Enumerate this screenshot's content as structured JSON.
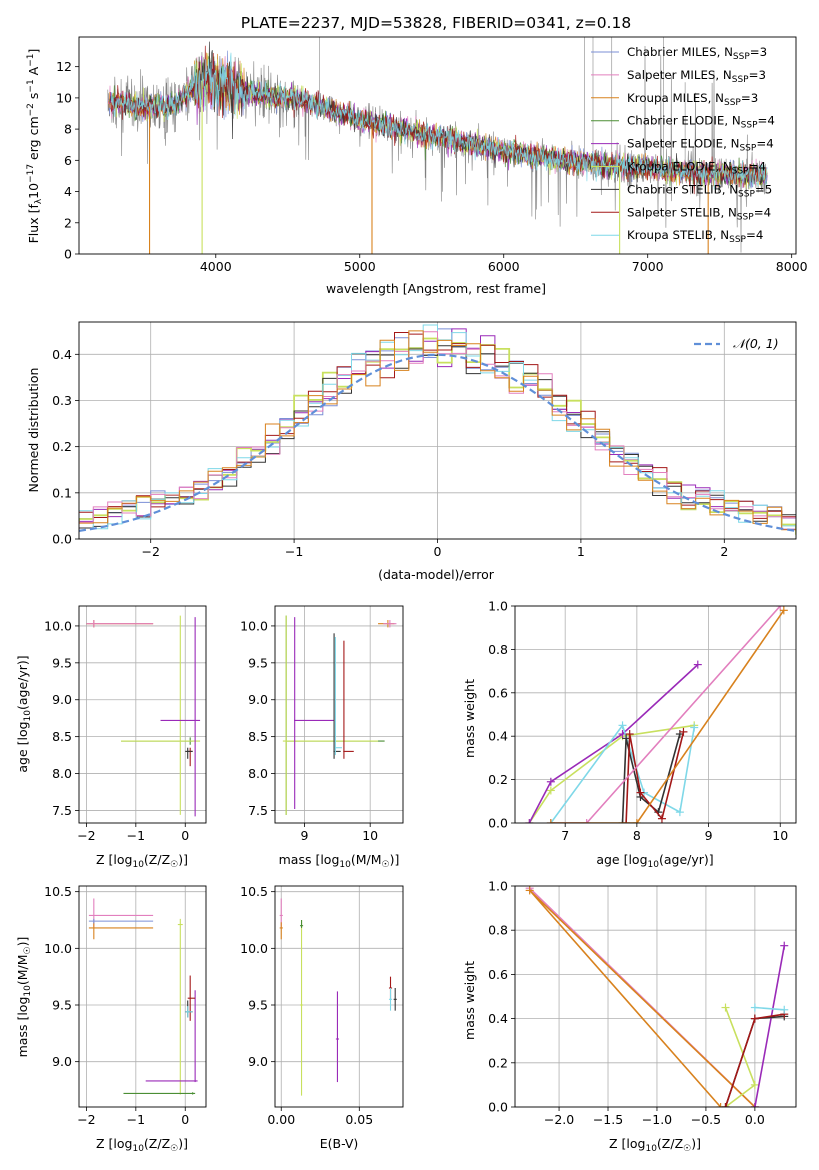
{
  "figure_title": "PLATE=2237, MJD=53828, FIBERID=0341, z=0.18",
  "colors": {
    "Chabrier MILES": "#7b8fd6",
    "Salpeter MILES": "#e27fbe",
    "Kroupa MILES": "#d8821e",
    "Chabrier ELODIE": "#4b8e34",
    "Salpeter ELODIE": "#9a2ab8",
    "Kroupa ELODIE": "#c8e05e",
    "Chabrier STELIB": "#333333",
    "Salpeter STELIB": "#a31818",
    "Kroupa STELIB": "#7fd8e8",
    "data": "#808080",
    "gauss": "#5f8fd8"
  },
  "chart_data": [
    {
      "id": "spectrum",
      "type": "line",
      "title": "PLATE=2237, MJD=53828, FIBERID=0341, z=0.18",
      "xlabel": "wavelength [Angstrom, rest frame]",
      "ylabel": "Flux [fλ10⁻¹⁷ erg cm⁻² s⁻¹ A⁻¹]",
      "xlim": [
        3050,
        8030
      ],
      "ylim": [
        0,
        13.9
      ],
      "xticks": [
        4000,
        5000,
        6000,
        7000,
        8000
      ],
      "yticks": [
        0,
        2,
        4,
        6,
        8,
        10,
        12
      ],
      "legend_position": "right",
      "series": [
        {
          "name": "Chabrier MILES",
          "label_main": "Chabrier MILES, N",
          "label_sub": "SSP",
          "label_tail": "=3"
        },
        {
          "name": "Salpeter MILES",
          "label_main": "Salpeter MILES, N",
          "label_sub": "SSP",
          "label_tail": "=3"
        },
        {
          "name": "Kroupa MILES",
          "label_main": "Kroupa MILES, N",
          "label_sub": "SSP",
          "label_tail": "=3"
        },
        {
          "name": "Chabrier ELODIE",
          "label_main": "Chabrier ELODIE, N",
          "label_sub": "SSP",
          "label_tail": "=4"
        },
        {
          "name": "Salpeter ELODIE",
          "label_main": "Salpeter ELODIE, N",
          "label_sub": "SSP",
          "label_tail": "=4"
        },
        {
          "name": "Kroupa ELODIE",
          "label_main": "Kroupa ELODIE, N",
          "label_sub": "SSP",
          "label_tail": "=4"
        },
        {
          "name": "Chabrier STELIB",
          "label_main": "Chabrier STELIB, N",
          "label_sub": "SSP",
          "label_tail": "=5"
        },
        {
          "name": "Salpeter STELIB",
          "label_main": "Salpeter STELIB, N",
          "label_sub": "SSP",
          "label_tail": "=4"
        },
        {
          "name": "Kroupa STELIB",
          "label_main": "Kroupa STELIB, N",
          "label_sub": "SSP",
          "label_tail": "=4"
        }
      ],
      "continuum": {
        "x": [
          3250,
          3500,
          3700,
          3900,
          4000,
          4300,
          4600,
          5000,
          5500,
          6000,
          6500,
          7000,
          7500,
          7830
        ],
        "y": [
          9.8,
          9.4,
          9.5,
          11.1,
          11.0,
          10.2,
          9.9,
          8.6,
          7.6,
          6.6,
          5.9,
          5.5,
          5.1,
          5.0
        ]
      },
      "drops_to_zero": [
        3540,
        3905,
        5085,
        6805,
        7420
      ]
    },
    {
      "id": "residuals",
      "type": "line",
      "xlabel": "(data-model)/error",
      "ylabel": "Normed distribution",
      "xlim": [
        -2.5,
        2.5
      ],
      "ylim": [
        0,
        0.47
      ],
      "xticks": [
        -2,
        -1,
        0,
        1,
        2
      ],
      "yticks": [
        0.0,
        0.1,
        0.2,
        0.3,
        0.4
      ],
      "legend_position": "top-right",
      "gauss_label": "N(0,1)",
      "hist_series": [
        "Chabrier MILES",
        "Salpeter ELODIE",
        "Kroupa ELODIE",
        "Chabrier STELIB",
        "Salpeter STELIB",
        "Kroupa STELIB",
        "Salpeter MILES",
        "Kroupa MILES"
      ]
    },
    {
      "id": "age_vs_Z",
      "type": "scatter",
      "xlabel": "Z [log₁₀(Z/Z☉)]",
      "ylabel": "age  [log₁₀(age/yr)]",
      "xlim": [
        -2.15,
        0.42
      ],
      "ylim": [
        7.33,
        10.27
      ],
      "xticks": [
        -2,
        -1,
        0
      ],
      "yticks": [
        7.5,
        8.0,
        8.5,
        9.0,
        9.5,
        10.0
      ]
    },
    {
      "id": "age_vs_mass",
      "type": "scatter",
      "xlabel": "mass [log₁₀(M/M☉)]",
      "ylabel": "",
      "xlim": [
        8.55,
        10.5
      ],
      "ylim": [
        7.33,
        10.27
      ],
      "xticks": [
        9,
        10
      ],
      "yticks": [
        7.5,
        8.0,
        8.5,
        9.0,
        9.5,
        10.0
      ]
    },
    {
      "id": "weight_vs_age",
      "type": "line",
      "xlabel": "age  [log₁₀(age/yr)]",
      "ylabel": "mass weight",
      "xlim": [
        6.3,
        10.22
      ],
      "ylim": [
        0,
        1.0
      ],
      "xticks": [
        7,
        8,
        9,
        10
      ],
      "yticks": [
        0.0,
        0.2,
        0.4,
        0.6,
        0.8,
        1.0
      ],
      "series": [
        {
          "name": "Kroupa ELODIE",
          "x": [
            6.5,
            6.8,
            7.8,
            8.8
          ],
          "y": [
            0.0,
            0.15,
            0.4,
            0.45
          ]
        },
        {
          "name": "Salpeter ELODIE",
          "x": [
            6.5,
            6.8,
            7.8,
            8.85
          ],
          "y": [
            0.0,
            0.19,
            0.41,
            0.73
          ]
        },
        {
          "name": "Kroupa STELIB",
          "x": [
            6.8,
            7.8,
            8.1,
            8.6,
            8.8
          ],
          "y": [
            0.0,
            0.45,
            0.14,
            0.05,
            0.44
          ]
        },
        {
          "name": "Chabrier STELIB",
          "x": [
            7.8,
            7.85,
            8.05,
            8.3,
            8.6
          ],
          "y": [
            0.0,
            0.39,
            0.12,
            0.05,
            0.41
          ]
        },
        {
          "name": "Salpeter STELIB",
          "x": [
            7.85,
            7.9,
            8.05,
            8.35,
            8.65
          ],
          "y": [
            0.0,
            0.41,
            0.14,
            0.02,
            0.42
          ]
        },
        {
          "name": "Salpeter MILES",
          "x": [
            6.8,
            7.3,
            10.0
          ],
          "y": [
            0.0,
            0.0,
            1.0
          ]
        },
        {
          "name": "Kroupa MILES",
          "x": [
            6.8,
            8.0,
            10.05
          ],
          "y": [
            0.0,
            0.0,
            0.98
          ]
        }
      ]
    },
    {
      "id": "mass_vs_Z",
      "type": "scatter",
      "xlabel": "Z [log₁₀(Z/Z☉)]",
      "ylabel": "mass [log₁₀(M/M☉)]",
      "xlim": [
        -2.15,
        0.42
      ],
      "ylim": [
        8.6,
        10.55
      ],
      "xticks": [
        -2,
        -1,
        0
      ],
      "yticks": [
        9.0,
        9.5,
        10.0,
        10.5
      ]
    },
    {
      "id": "mass_vs_ebv",
      "type": "scatter",
      "xlabel": "E(B-V)",
      "ylabel": "",
      "xlim": [
        -0.004,
        0.078
      ],
      "ylim": [
        8.6,
        10.55
      ],
      "xticks": [
        0.0,
        0.05
      ],
      "yticks": [
        9.0,
        9.5,
        10.0,
        10.5
      ]
    },
    {
      "id": "weight_vs_Z",
      "type": "line",
      "xlabel": "Z [log₁₀(Z/Z☉)]",
      "ylabel": "mass weight",
      "xlim": [
        -2.45,
        0.42
      ],
      "ylim": [
        0,
        1.0
      ],
      "xticks": [
        -2.0,
        -1.5,
        -1.0,
        -0.5,
        0.0
      ],
      "yticks": [
        0.0,
        0.2,
        0.4,
        0.6,
        0.8,
        1.0
      ],
      "series": [
        {
          "name": "Salpeter MILES",
          "x": [
            0.0,
            -2.3,
            0.0
          ],
          "y": [
            0.0,
            0.99,
            0.0
          ]
        },
        {
          "name": "Kroupa MILES",
          "x": [
            -0.35,
            -2.3,
            0.0
          ],
          "y": [
            0.0,
            0.98,
            0.0
          ]
        },
        {
          "name": "Kroupa ELODIE",
          "x": [
            -0.3,
            0.0,
            -0.3
          ],
          "y": [
            0.45,
            0.1,
            0.0
          ]
        },
        {
          "name": "Salpeter ELODIE",
          "x": [
            0.0,
            0.3
          ],
          "y": [
            0.0,
            0.73
          ]
        },
        {
          "name": "Chabrier STELIB",
          "x": [
            -0.3,
            0.0,
            0.3
          ],
          "y": [
            0.0,
            0.4,
            0.41
          ]
        },
        {
          "name": "Salpeter STELIB",
          "x": [
            -0.3,
            0.0,
            0.3
          ],
          "y": [
            0.0,
            0.4,
            0.42
          ]
        },
        {
          "name": "Kroupa STELIB",
          "x": [
            0.0,
            0.3
          ],
          "y": [
            0.45,
            0.44
          ]
        }
      ]
    }
  ]
}
